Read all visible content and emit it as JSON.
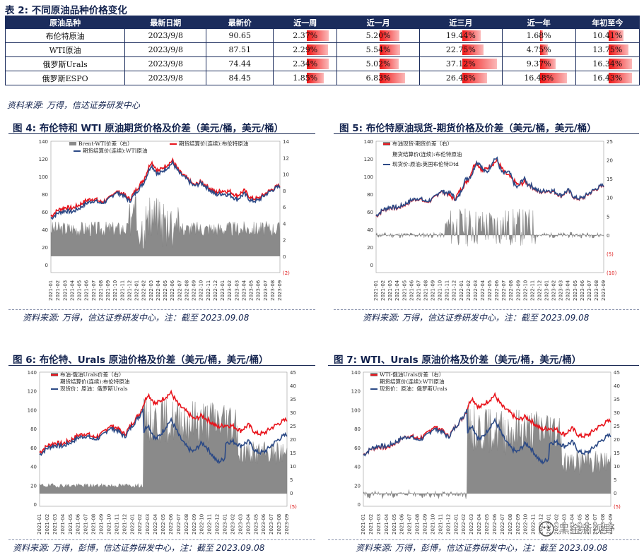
{
  "table": {
    "caption": "表 2:  不同原油品种价格变化",
    "headers": [
      "原油品种",
      "最新日期",
      "最新价",
      "近一周",
      "近一月",
      "近三月",
      "近一年",
      "年初至今"
    ],
    "rows": [
      {
        "name": "布伦特原油",
        "date": "2023/9/8",
        "price": "90.65",
        "w": "2.37%",
        "m": "5.20%",
        "q": "19.44%",
        "y": "1.68%",
        "ytd": "10.41%",
        "wv": 2.37,
        "mv": 5.2,
        "qv": 19.44,
        "yv": 1.68,
        "ytdv": 10.41
      },
      {
        "name": "WTI原油",
        "date": "2023/9/8",
        "price": "87.51",
        "w": "2.29%",
        "m": "5.54%",
        "q": "22.75%",
        "y": "4.75%",
        "ytd": "13.75%",
        "wv": 2.29,
        "mv": 5.54,
        "qv": 22.75,
        "yv": 4.75,
        "ytdv": 13.75
      },
      {
        "name": "俄罗斯Urals",
        "date": "2023/9/8",
        "price": "74.44",
        "w": "2.34%",
        "m": "5.02%",
        "q": "37.12%",
        "y": "9.37%",
        "ytd": "16.34%",
        "wv": 2.34,
        "mv": 5.02,
        "qv": 37.12,
        "yv": 9.37,
        "ytdv": 16.34
      },
      {
        "name": "俄罗斯ESPO",
        "date": "2023/9/8",
        "price": "84.45",
        "w": "1.85%",
        "m": "6.83%",
        "q": "26.48%",
        "y": "16.48%",
        "ytd": "16.43%",
        "wv": 1.85,
        "mv": 6.83,
        "qv": 26.48,
        "yv": 16.48,
        "ytdv": 16.43
      }
    ],
    "source": "资料来源:  万得，信达证券研发中心"
  },
  "charts": [
    {
      "caption": "图 4:  布伦特和 WTI 原油期货价格及价差（美元/桶，美元/桶）",
      "source": "资料来源:  万得，信达证券研发中心，注：截至 2023.09.08",
      "legend": [
        "Brent-WTI价差（右）",
        "期货结算价(连续):布伦特原油",
        "期货结算价(连续):WTI原油"
      ],
      "left_ticks": [
        "140",
        "120",
        "100",
        "80",
        "60",
        "40",
        "20",
        "0"
      ],
      "right_ticks": [
        "14",
        "12",
        "10",
        "8",
        "6",
        "4",
        "2",
        "0",
        "(2)"
      ]
    },
    {
      "caption": "图 5:  布伦特原油现货-期货价格及价差（美元/桶，美元/桶）",
      "source": "资料来源:  万得，信达证券研发中心，注：截至 2023.09.08",
      "legend": [
        "布油现货-期货价差（右）",
        "期货结算价(连续):布伦特原油",
        "现货价:原油:英国布伦特Dtd"
      ],
      "left_ticks": [
        "140",
        "120",
        "100",
        "80",
        "60",
        "40",
        "20",
        "0"
      ],
      "right_ticks": [
        "25",
        "20",
        "15",
        "10",
        "5",
        "0",
        "(5)",
        "(10)"
      ]
    },
    {
      "caption": "图 6:  布伦特、Urals 原油价格及价差（美元/桶，美元/桶）",
      "source": "资料来源:  万得，彭博，信达证券研发中心，注：截至 2023.09.08",
      "legend": [
        "布油-俄油Urals价差（右）",
        "期货结算价(连续):布伦特原油",
        "现货价：原油：俄罗斯Urals"
      ],
      "left_ticks": [
        "140",
        "120",
        "100",
        "80",
        "60",
        "40",
        "20",
        "0"
      ],
      "right_ticks": [
        "45",
        "40",
        "35",
        "30",
        "25",
        "20",
        "15",
        "10",
        "5",
        "0",
        "(5)"
      ]
    },
    {
      "caption": "图 7:  WTI、Urals 原油价格及价差（美元/桶，美元/桶）",
      "source": "资料来源:  万得，彭博，信达证券研发中心，注：截至 2023.09.08",
      "legend": [
        "WTI-俄油Urals价差（右）",
        "期货结算价(连续):WTI原油",
        "现货价：原油：俄罗斯Urals"
      ],
      "left_ticks": [
        "140",
        "120",
        "100",
        "80",
        "60",
        "40",
        "20",
        "0"
      ],
      "right_ticks": [
        "45",
        "40",
        "35",
        "30",
        "25",
        "20",
        "15",
        "10",
        "5",
        "0",
        "(5)"
      ]
    }
  ],
  "x_ticks": [
    "2021-01",
    "2021-02",
    "2021-03",
    "2021-04",
    "2021-05",
    "2021-06",
    "2021-07",
    "2021-08",
    "2021-09",
    "2021-10",
    "2021-11",
    "2021-12",
    "2022-01",
    "2022-02",
    "2022-03",
    "2022-04",
    "2022-05",
    "2022-06",
    "2022-07",
    "2022-08",
    "2022-09",
    "2022-10",
    "2022-11",
    "2022-12",
    "2023-01",
    "2023-02",
    "2023-03",
    "2023-04",
    "2023-05",
    "2023-06",
    "2023-07",
    "2023-08",
    "2023-09"
  ],
  "brand": "黑金新视野",
  "colors": {
    "navy": "#1b2c5c",
    "red": "#e8141c",
    "blue": "#2c4a86",
    "gray": "#8a8a8a"
  }
}
